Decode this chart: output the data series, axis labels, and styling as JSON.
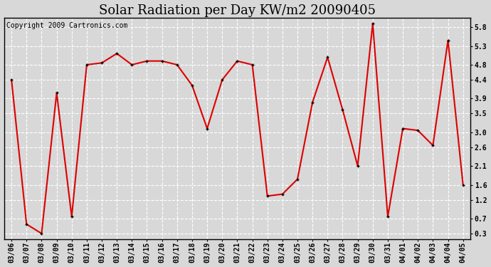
{
  "title": "Solar Radiation per Day KW/m2 20090405",
  "copyright": "Copyright 2009 Cartronics.com",
  "dates": [
    "03/06",
    "03/07",
    "03/08",
    "03/09",
    "03/10",
    "03/11",
    "03/12",
    "03/13",
    "03/14",
    "03/15",
    "03/16",
    "03/17",
    "03/18",
    "03/19",
    "03/20",
    "03/21",
    "03/22",
    "03/23",
    "03/24",
    "03/25",
    "03/26",
    "03/27",
    "03/28",
    "03/29",
    "03/30",
    "03/31",
    "04/01",
    "04/02",
    "04/03",
    "04/04",
    "04/05"
  ],
  "values": [
    4.4,
    0.55,
    0.3,
    4.05,
    0.75,
    4.8,
    4.85,
    5.1,
    4.8,
    4.9,
    4.9,
    4.8,
    4.25,
    3.1,
    4.4,
    4.9,
    4.8,
    1.3,
    1.35,
    1.75,
    3.8,
    5.0,
    3.6,
    2.1,
    5.9,
    0.75,
    3.1,
    3.05,
    2.65,
    5.45,
    1.6
  ],
  "line_color": "#dd0000",
  "marker_color": "#000000",
  "marker_size": 3,
  "bg_color": "#d8d8d8",
  "plot_bg_color": "#d8d8d8",
  "grid_color": "#ffffff",
  "yticks": [
    0.3,
    0.7,
    1.2,
    1.6,
    2.1,
    2.6,
    3.0,
    3.5,
    3.9,
    4.4,
    4.8,
    5.3,
    5.8
  ],
  "ylim": [
    0.15,
    6.05
  ],
  "title_fontsize": 13,
  "copyright_fontsize": 7,
  "tick_fontsize": 7,
  "figwidth": 6.9,
  "figheight": 3.75,
  "dpi": 100
}
